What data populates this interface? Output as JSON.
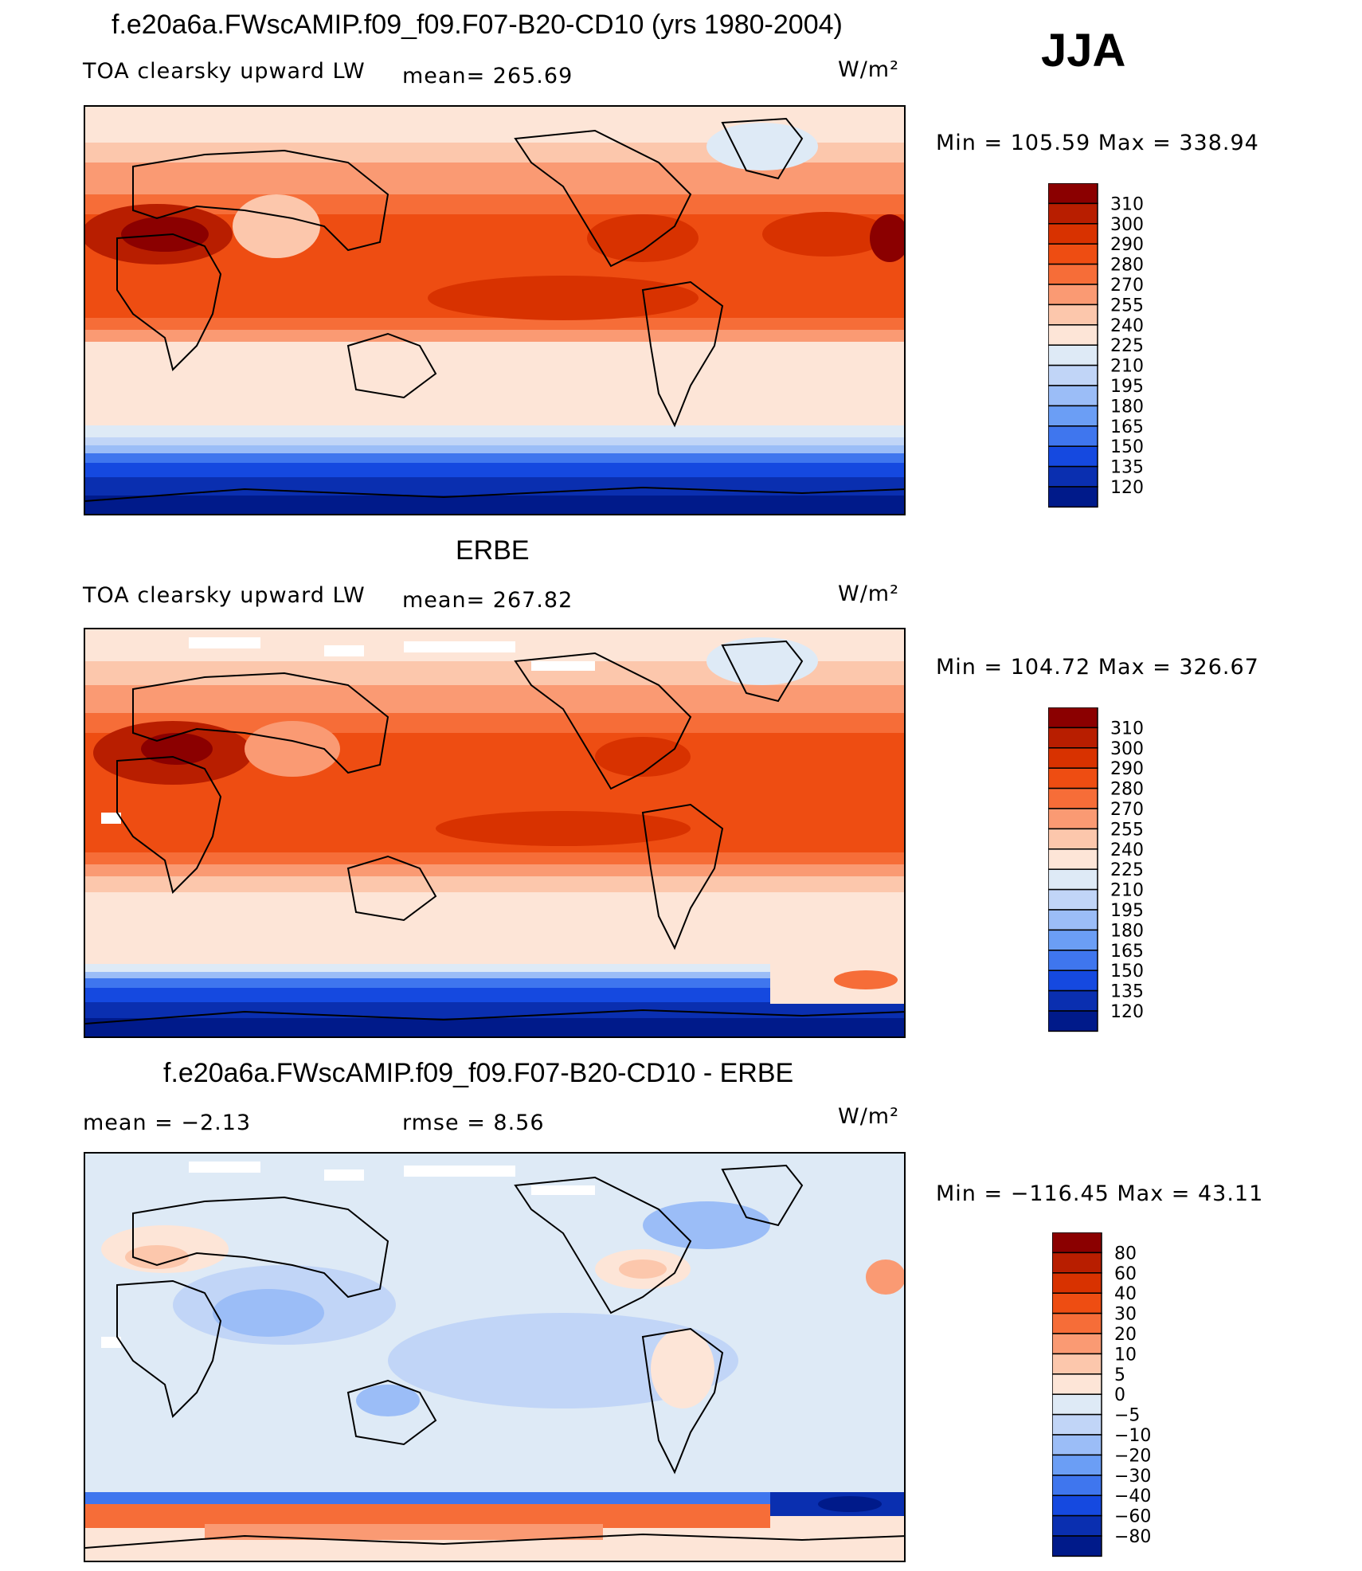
{
  "season": "JJA",
  "units": "W/m²",
  "panels": [
    {
      "title": "f.e20a6a.FWscAMIP.f09_f09.F07-B20-CD10 (yrs 1980-2004)",
      "variable": "TOA clearsky upward LW",
      "stat1": "mean=  265.69",
      "stat2": "",
      "minmax": "Min  =  105.59  Max  =  338.94",
      "colorbar": "abs"
    },
    {
      "title": "ERBE",
      "variable": "TOA clearsky upward LW",
      "stat1": "mean=  267.82",
      "stat2": "",
      "minmax": "Min  =  104.72  Max  =  326.67",
      "colorbar": "abs"
    },
    {
      "title": "f.e20a6a.FWscAMIP.f09_f09.F07-B20-CD10 - ERBE",
      "variable": "",
      "stat1": "mean  =    −2.13",
      "stat2": "rmse  =     8.56",
      "minmax": "Min  =  −116.45  Max  =    43.11",
      "colorbar": "diff"
    }
  ],
  "chart_data": [
    {
      "type": "heatmap",
      "title": "f.e20a6a.FWscAMIP.f09_f09.F07-B20-CD10 (yrs 1980-2004)",
      "subtitle": "TOA clearsky upward LW",
      "mean": 265.69,
      "min": 105.59,
      "max": 338.94,
      "levels": [
        310,
        300,
        290,
        280,
        270,
        255,
        240,
        225,
        210,
        195,
        180,
        165,
        150,
        135,
        120
      ],
      "colors": [
        "#8b0000",
        "#b81e00",
        "#d83200",
        "#ee4d12",
        "#f66d38",
        "#fa9a73",
        "#fcc7ac",
        "#fde5d7",
        "#deeaf6",
        "#c1d5f7",
        "#9bbdf7",
        "#6b9ef5",
        "#3f76ee",
        "#1549e0",
        "#0a2fb0",
        "#001a8a"
      ]
    },
    {
      "type": "heatmap",
      "title": "ERBE",
      "subtitle": "TOA clearsky upward LW",
      "mean": 267.82,
      "min": 104.72,
      "max": 326.67,
      "levels": [
        310,
        300,
        290,
        280,
        270,
        255,
        240,
        225,
        210,
        195,
        180,
        165,
        150,
        135,
        120
      ],
      "colors": [
        "#8b0000",
        "#b81e00",
        "#d83200",
        "#ee4d12",
        "#f66d38",
        "#fa9a73",
        "#fcc7ac",
        "#fde5d7",
        "#deeaf6",
        "#c1d5f7",
        "#9bbdf7",
        "#6b9ef5",
        "#3f76ee",
        "#1549e0",
        "#0a2fb0",
        "#001a8a"
      ]
    },
    {
      "type": "heatmap",
      "title": "f.e20a6a.FWscAMIP.f09_f09.F07-B20-CD10 - ERBE",
      "mean": -2.13,
      "rmse": 8.56,
      "min": -116.45,
      "max": 43.11,
      "levels": [
        80,
        60,
        40,
        30,
        20,
        10,
        5,
        0,
        -5,
        -10,
        -20,
        -30,
        -40,
        -60,
        -80
      ],
      "level_labels": [
        "80",
        "60",
        "40",
        "30",
        "20",
        "10",
        "5",
        "0",
        "−5",
        "−10",
        "−20",
        "−30",
        "−40",
        "−60",
        "−80"
      ],
      "colors": [
        "#8b0000",
        "#b81e00",
        "#d83200",
        "#ee4d12",
        "#f66d38",
        "#fa9a73",
        "#fcc7ac",
        "#fde5d7",
        "#deeaf6",
        "#c1d5f7",
        "#9bbdf7",
        "#6b9ef5",
        "#3f76ee",
        "#1549e0",
        "#0a2fb0",
        "#001a8a"
      ]
    }
  ]
}
